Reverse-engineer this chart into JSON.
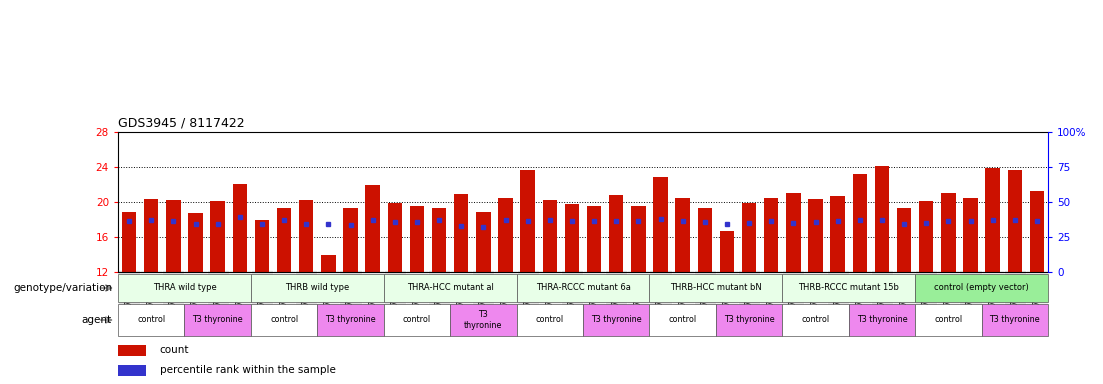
{
  "title": "GDS3945 / 8117422",
  "samples": [
    "GSM721654",
    "GSM721655",
    "GSM721656",
    "GSM721657",
    "GSM721658",
    "GSM721659",
    "GSM721660",
    "GSM721661",
    "GSM721662",
    "GSM721663",
    "GSM721664",
    "GSM721665",
    "GSM721666",
    "GSM721667",
    "GSM721668",
    "GSM721669",
    "GSM721670",
    "GSM721671",
    "GSM721672",
    "GSM721673",
    "GSM721674",
    "GSM721675",
    "GSM721676",
    "GSM721677",
    "GSM721678",
    "GSM721679",
    "GSM721680",
    "GSM721681",
    "GSM721682",
    "GSM721683",
    "GSM721684",
    "GSM721685",
    "GSM721686",
    "GSM721687",
    "GSM721688",
    "GSM721689",
    "GSM721690",
    "GSM721691",
    "GSM721692",
    "GSM721693",
    "GSM721694",
    "GSM721695"
  ],
  "bar_values": [
    18.9,
    20.3,
    20.2,
    18.8,
    20.1,
    22.1,
    17.9,
    19.3,
    20.2,
    13.9,
    19.3,
    22.0,
    19.9,
    19.5,
    19.3,
    20.9,
    18.9,
    20.5,
    23.7,
    20.2,
    19.8,
    19.6,
    20.8,
    19.6,
    22.9,
    20.5,
    19.3,
    16.7,
    19.9,
    20.5,
    21.0,
    20.3,
    20.7,
    23.2,
    24.1,
    19.3,
    20.1,
    21.0,
    20.5,
    23.9,
    23.7,
    21.3
  ],
  "blue_values": [
    17.8,
    17.9,
    17.8,
    17.5,
    17.5,
    18.3,
    17.5,
    17.9,
    17.5,
    17.5,
    17.4,
    18.0,
    17.7,
    17.7,
    18.0,
    17.3,
    17.2,
    18.0,
    17.8,
    17.9,
    17.8,
    17.8,
    17.8,
    17.8,
    18.1,
    17.8,
    17.7,
    17.5,
    17.6,
    17.8,
    17.6,
    17.7,
    17.8,
    17.9,
    17.9,
    17.5,
    17.6,
    17.8,
    17.8,
    18.0,
    17.9,
    17.8
  ],
  "ymin": 12,
  "ymax": 28,
  "yticks_left": [
    12,
    16,
    20,
    24,
    28
  ],
  "yticks_right_labels": [
    "0",
    "25",
    "50",
    "75",
    "100%"
  ],
  "yticks_right_pos": [
    12,
    16,
    20,
    24,
    28
  ],
  "dotted_lines": [
    16,
    20,
    24
  ],
  "bar_color": "#cc1100",
  "blue_color": "#3333cc",
  "genotype_groups": [
    {
      "label": "THRA wild type",
      "start": 0,
      "end": 5,
      "color": "#e8ffe8"
    },
    {
      "label": "THRB wild type",
      "start": 6,
      "end": 11,
      "color": "#e8ffe8"
    },
    {
      "label": "THRA-HCC mutant al",
      "start": 12,
      "end": 17,
      "color": "#e8ffe8"
    },
    {
      "label": "THRA-RCCC mutant 6a",
      "start": 18,
      "end": 23,
      "color": "#e8ffe8"
    },
    {
      "label": "THRB-HCC mutant bN",
      "start": 24,
      "end": 29,
      "color": "#e8ffe8"
    },
    {
      "label": "THRB-RCCC mutant 15b",
      "start": 30,
      "end": 35,
      "color": "#e8ffe8"
    },
    {
      "label": "control (empty vector)",
      "start": 36,
      "end": 41,
      "color": "#99ee99"
    }
  ],
  "agent_groups": [
    {
      "label": "control",
      "start": 0,
      "end": 2,
      "color": "#ffffff"
    },
    {
      "label": "T3 thyronine",
      "start": 3,
      "end": 5,
      "color": "#ee88ee"
    },
    {
      "label": "control",
      "start": 6,
      "end": 8,
      "color": "#ffffff"
    },
    {
      "label": "T3 thyronine",
      "start": 9,
      "end": 11,
      "color": "#ee88ee"
    },
    {
      "label": "control",
      "start": 12,
      "end": 14,
      "color": "#ffffff"
    },
    {
      "label": "T3\nthyronine",
      "start": 15,
      "end": 17,
      "color": "#ee88ee"
    },
    {
      "label": "control",
      "start": 18,
      "end": 20,
      "color": "#ffffff"
    },
    {
      "label": "T3 thyronine",
      "start": 21,
      "end": 23,
      "color": "#ee88ee"
    },
    {
      "label": "control",
      "start": 24,
      "end": 26,
      "color": "#ffffff"
    },
    {
      "label": "T3 thyronine",
      "start": 27,
      "end": 29,
      "color": "#ee88ee"
    },
    {
      "label": "control",
      "start": 30,
      "end": 32,
      "color": "#ffffff"
    },
    {
      "label": "T3 thyronine",
      "start": 33,
      "end": 35,
      "color": "#ee88ee"
    },
    {
      "label": "control",
      "start": 36,
      "end": 38,
      "color": "#ffffff"
    },
    {
      "label": "T3 thyronine",
      "start": 39,
      "end": 41,
      "color": "#ee88ee"
    }
  ],
  "legend_items": [
    {
      "label": "count",
      "color": "#cc1100"
    },
    {
      "label": "percentile rank within the sample",
      "color": "#3333cc"
    }
  ],
  "left_labels": [
    {
      "text": "genotype/variation",
      "row": "geno"
    },
    {
      "text": "agent",
      "row": "agent"
    }
  ]
}
